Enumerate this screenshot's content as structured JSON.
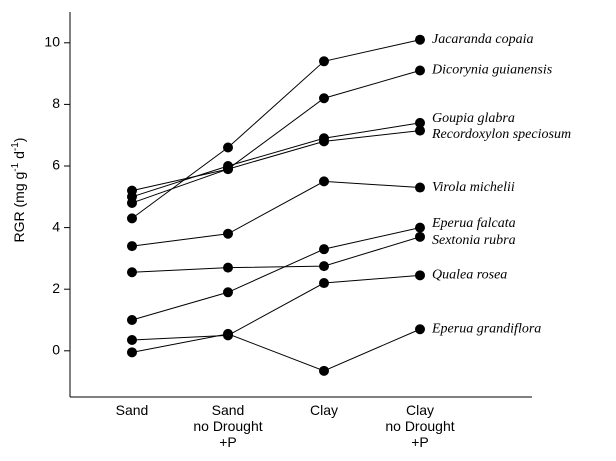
{
  "chart_data": {
    "type": "line",
    "ylabel": [
      "RGR (mg g",
      "-1",
      " d",
      "-1",
      ")"
    ],
    "categories": [
      [
        "Sand"
      ],
      [
        "Sand",
        "no Drought",
        "+P"
      ],
      [
        "Clay"
      ],
      [
        "Clay",
        "no Drought",
        "+P"
      ]
    ],
    "series": [
      {
        "name": "Jacaranda copaia",
        "color": "#000000",
        "values": [
          4.3,
          6.6,
          9.4,
          10.1
        ]
      },
      {
        "name": "Dicorynia guianensis",
        "color": "#000000",
        "values": [
          4.8,
          5.9,
          8.2,
          9.1
        ]
      },
      {
        "name": "Goupia glabra",
        "color": "#000000",
        "values": [
          5.0,
          6.0,
          6.9,
          7.4
        ]
      },
      {
        "name": "Recordoxylon speciosum",
        "color": "#000000",
        "values": [
          5.2,
          5.9,
          6.8,
          7.15
        ]
      },
      {
        "name": "Virola michelii",
        "color": "#000000",
        "values": [
          3.4,
          3.8,
          5.5,
          5.3
        ]
      },
      {
        "name": "Eperua falcata",
        "color": "#000000",
        "values": [
          1.0,
          1.9,
          3.3,
          4.0
        ]
      },
      {
        "name": "Sextonia rubra",
        "color": "#000000",
        "values": [
          2.55,
          2.7,
          2.75,
          3.7
        ]
      },
      {
        "name": "Qualea rosea",
        "color": "#000000",
        "values": [
          0.35,
          0.5,
          2.2,
          2.45
        ]
      },
      {
        "name": "Eperua grandiflora",
        "color": "#000000",
        "values": [
          -0.05,
          0.55,
          -0.65,
          0.7
        ]
      }
    ],
    "ylim": [
      -1.5,
      11
    ],
    "yticks": [
      0,
      2,
      4,
      6,
      8,
      10
    ]
  }
}
